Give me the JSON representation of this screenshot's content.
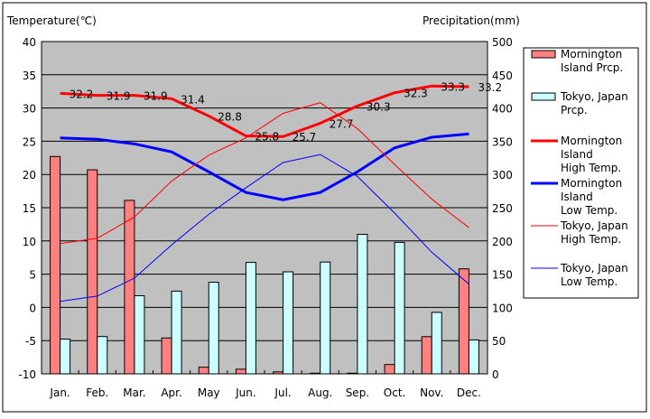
{
  "chart_data": {
    "type": "bar+line",
    "left_axis_title": "Temperature(℃)",
    "right_axis_title": "Precipitation(mm)",
    "categories": [
      "Jan.",
      "Feb.",
      "Mar.",
      "Apr.",
      "May",
      "Jun.",
      "Jul.",
      "Aug.",
      "Sep.",
      "Oct.",
      "Nov.",
      "Dec."
    ],
    "left_ylim": [
      -10,
      40
    ],
    "left_ticks": [
      40,
      35,
      30,
      25,
      20,
      15,
      10,
      5,
      0,
      -5,
      -10
    ],
    "right_ylim": [
      0,
      500
    ],
    "right_ticks": [
      500,
      450,
      400,
      350,
      300,
      250,
      200,
      150,
      100,
      50,
      0
    ],
    "grid": true,
    "legend_position": "right",
    "bar_series": [
      {
        "name": "Mornington Island Prcp.",
        "legend": [
          "Mornington",
          "Island Prcp."
        ],
        "color": "#ff8080",
        "values": [
          327,
          307,
          261,
          54,
          10,
          7,
          3,
          1,
          1,
          14,
          56,
          158
        ]
      },
      {
        "name": "Tokyo, Japan Prcp.",
        "legend": [
          "Tokyo, Japan",
          "Prcp."
        ],
        "color": "#ccffff",
        "values": [
          52.3,
          56.1,
          117.5,
          124.5,
          137.8,
          167.7,
          153.5,
          168.2,
          209.9,
          197.8,
          92.5,
          51.0
        ]
      }
    ],
    "line_series": [
      {
        "name": "Mornington Island High Temp.",
        "legend": [
          "Mornington",
          "Island",
          " High Temp."
        ],
        "color": "#ff0000",
        "width": 3,
        "values": [
          32.2,
          31.9,
          31.9,
          31.4,
          28.8,
          25.8,
          25.7,
          27.7,
          30.3,
          32.3,
          33.3,
          33.2
        ],
        "labels": [
          "32.2",
          "31.9",
          "31.9",
          "31.4",
          "28.8",
          "25.8",
          "25.7",
          "27.7",
          "30.3",
          "32.3",
          "33.3",
          "33.2"
        ]
      },
      {
        "name": "Mornington Island Low Temp.",
        "legend": [
          "Mornington",
          "Island",
          " Low Temp."
        ],
        "color": "#0000ff",
        "width": 3,
        "values": [
          25.5,
          25.3,
          24.6,
          23.4,
          20.4,
          17.3,
          16.2,
          17.3,
          20.4,
          24.0,
          25.6,
          26.1
        ]
      },
      {
        "name": "Tokyo, Japan High Temp.",
        "legend": [
          "Tokyo, Japan",
          "High Temp."
        ],
        "color": "#ff0000",
        "width": 1,
        "values": [
          9.6,
          10.4,
          13.6,
          19.0,
          22.9,
          25.5,
          29.2,
          30.8,
          26.9,
          21.5,
          16.3,
          12.0
        ]
      },
      {
        "name": "Tokyo, Japan Low Temp.",
        "legend": [
          "Tokyo, Japan",
          "Low Temp."
        ],
        "color": "#0000ff",
        "width": 1,
        "values": [
          0.9,
          1.7,
          4.4,
          9.4,
          14.0,
          18.0,
          21.8,
          23.0,
          19.7,
          14.2,
          8.3,
          3.5
        ]
      }
    ]
  }
}
